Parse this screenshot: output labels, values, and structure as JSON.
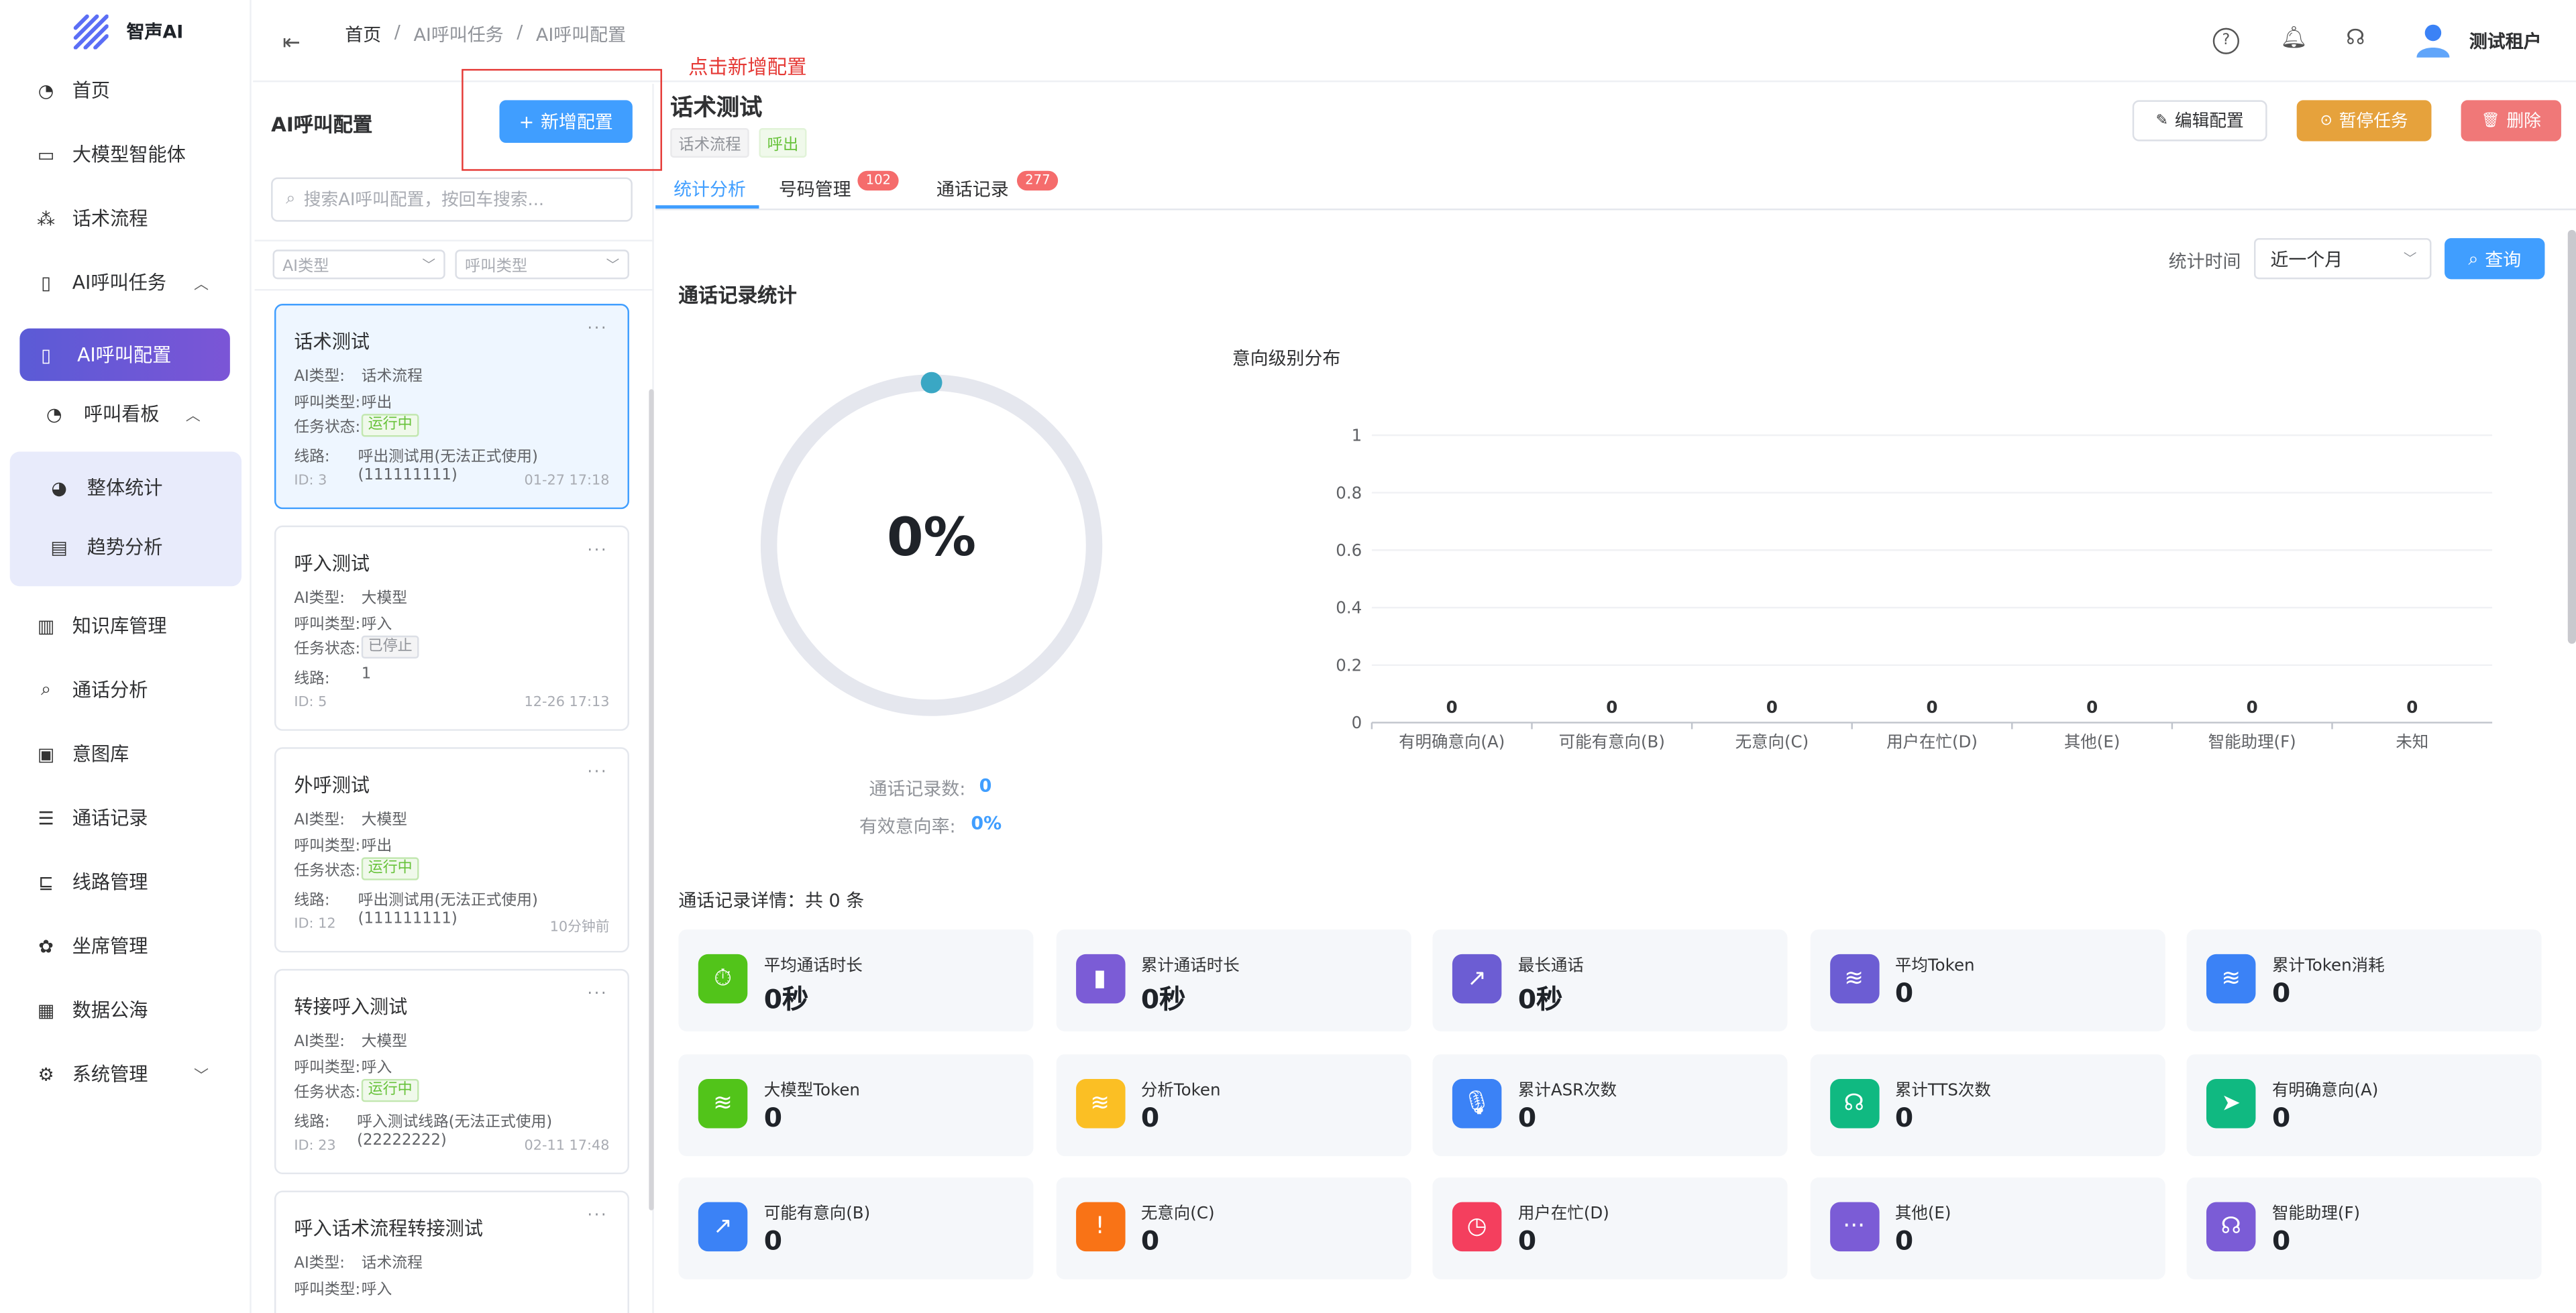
{
  "app": {
    "brand": "智声AI"
  },
  "sidebar": {
    "items": [
      {
        "label": "首页",
        "icon": "dashboard-icon"
      },
      {
        "label": "大模型智能体",
        "icon": "monitor-icon"
      },
      {
        "label": "话术流程",
        "icon": "flow-icon"
      },
      {
        "label": "AI呼叫任务",
        "icon": "phone-icon"
      },
      {
        "label": "AI呼叫配置",
        "icon": "phone-icon"
      },
      {
        "label": "呼叫看板",
        "icon": "dashboard-icon"
      },
      {
        "label": "整体统计",
        "icon": "chart-pie-icon"
      },
      {
        "label": "趋势分析",
        "icon": "trend-icon"
      },
      {
        "label": "知识库管理",
        "icon": "book-icon"
      },
      {
        "label": "通话分析",
        "icon": "search-icon"
      },
      {
        "label": "意图库",
        "icon": "database-icon"
      },
      {
        "label": "通话记录",
        "icon": "list-icon"
      },
      {
        "label": "线路管理",
        "icon": "line-icon"
      },
      {
        "label": "坐席管理",
        "icon": "agent-icon"
      },
      {
        "label": "数据公海",
        "icon": "data-icon"
      },
      {
        "label": "系统管理",
        "icon": "gear-icon"
      }
    ]
  },
  "header": {
    "breadcrumb": [
      "首页",
      "AI呼叫任务",
      "AI呼叫配置"
    ],
    "sep": "/",
    "user": "测试租户"
  },
  "annotation": {
    "text": "点击新增配置",
    "color": "#e53935"
  },
  "list_panel": {
    "title": "AI呼叫配置",
    "add_button": "新增配置",
    "search_placeholder": "搜索AI呼叫配置，按回车搜索...",
    "filter_ai_type": "AI类型",
    "filter_call_type": "呼叫类型",
    "labels": {
      "ai_type": "AI类型:",
      "call_type": "呼叫类型:",
      "status": "任务状态:",
      "line": "线路:"
    },
    "cards": [
      {
        "title": "话术测试",
        "ai_type": "话术流程",
        "call_type": "呼出",
        "status": "运行中",
        "line": "呼出测试用(无法正式使用) (111111111)",
        "id": "ID: 3",
        "time": "01-27 17:18"
      },
      {
        "title": "呼入测试",
        "ai_type": "大模型",
        "call_type": "呼入",
        "status": "已停止",
        "line": "1",
        "id": "ID: 5",
        "time": "12-26 17:13"
      },
      {
        "title": "外呼测试",
        "ai_type": "大模型",
        "call_type": "呼出",
        "status": "运行中",
        "line": "呼出测试用(无法正式使用) (111111111)",
        "id": "ID: 12",
        "time": "10分钟前"
      },
      {
        "title": "转接呼入测试",
        "ai_type": "大模型",
        "call_type": "呼入",
        "status": "运行中",
        "line": "呼入测试线路(无法正式使用) (22222222)",
        "id": "ID: 23",
        "time": "02-11 17:48"
      },
      {
        "title": "呼入话术流程转接测试",
        "ai_type": "话术流程",
        "call_type": "呼入",
        "status": "",
        "line": "",
        "id": "",
        "time": ""
      }
    ]
  },
  "detail": {
    "title": "话术测试",
    "tag_type": "话术流程",
    "tag_call": "呼出",
    "edit_button": "编辑配置",
    "pause_button": "暂停任务",
    "delete_button": "删除",
    "tabs": [
      {
        "label": "统计分析",
        "badge": ""
      },
      {
        "label": "号码管理",
        "badge": "102"
      },
      {
        "label": "通话记录",
        "badge": "277"
      }
    ],
    "time_label": "统计时间",
    "time_value": "近一个月",
    "query_button": "查询",
    "section_title": "通话记录统计",
    "gauge_value": "0%",
    "record_count_label": "通话记录数:",
    "record_count": "0",
    "valid_rate_label": "有效意向率:",
    "valid_rate": "0%",
    "details_title": "通话记录详情：共 0 条"
  },
  "chart_data": {
    "type": "bar",
    "title": "意向级别分布",
    "categories": [
      "有明确意向(A)",
      "可能有意向(B)",
      "无意向(C)",
      "用户在忙(D)",
      "其他(E)",
      "智能助理(F)",
      "未知"
    ],
    "values": [
      0,
      0,
      0,
      0,
      0,
      0,
      0
    ],
    "y_ticks": [
      "0",
      "0.2",
      "0.4",
      "0.6",
      "0.8",
      "1"
    ],
    "ylim": [
      0,
      1
    ]
  },
  "stats": [
    {
      "label": "平均通话时长",
      "value": "0秒",
      "icon": "timer-icon",
      "color": "#52c41a"
    },
    {
      "label": "累计通话时长",
      "value": "0秒",
      "icon": "bar-chart-icon",
      "color": "#7b5cd6"
    },
    {
      "label": "最长通话",
      "value": "0秒",
      "icon": "line-chart-icon",
      "color": "#6c5dd3"
    },
    {
      "label": "平均Token",
      "value": "0",
      "icon": "database-icon",
      "color": "#6c5dd3"
    },
    {
      "label": "累计Token消耗",
      "value": "0",
      "icon": "database-icon",
      "color": "#3b82f6"
    },
    {
      "label": "大模型Token",
      "value": "0",
      "icon": "database-icon",
      "color": "#52c41a"
    },
    {
      "label": "分析Token",
      "value": "0",
      "icon": "database-icon",
      "color": "#fbbf24"
    },
    {
      "label": "累计ASR次数",
      "value": "0",
      "icon": "microphone-icon",
      "color": "#3b82f6"
    },
    {
      "label": "累计TTS次数",
      "value": "0",
      "icon": "headphones-icon",
      "color": "#10b981"
    },
    {
      "label": "有明确意向(A)",
      "value": "0",
      "icon": "send-icon",
      "color": "#10b981"
    },
    {
      "label": "可能有意向(B)",
      "value": "0",
      "icon": "line-chart-icon",
      "color": "#3b82f6"
    },
    {
      "label": "无意向(C)",
      "value": "0",
      "icon": "alert-icon",
      "color": "#f97316"
    },
    {
      "label": "用户在忙(D)",
      "value": "0",
      "icon": "clock-icon",
      "color": "#f43f5e"
    },
    {
      "label": "其他(E)",
      "value": "0",
      "icon": "more-icon",
      "color": "#7b5cd6"
    },
    {
      "label": "智能助理(F)",
      "value": "0",
      "icon": "headset-icon",
      "color": "#7b5cd6"
    }
  ]
}
